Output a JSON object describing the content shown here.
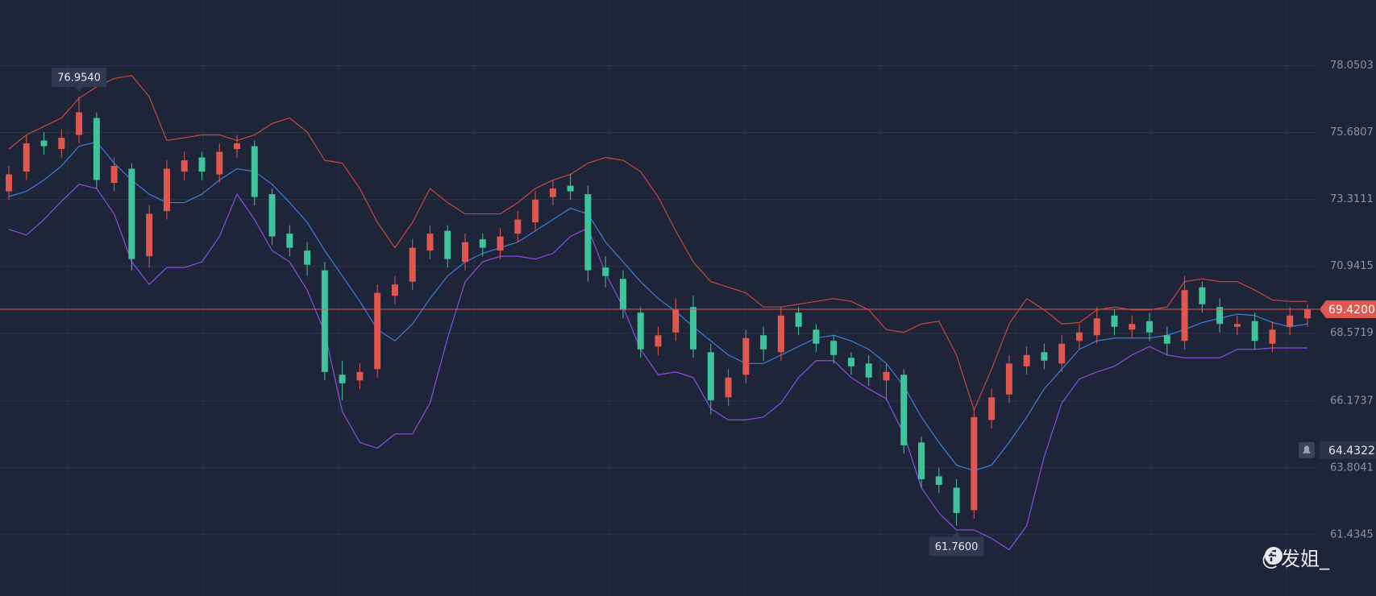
{
  "chart_data": {
    "type": "candlestick",
    "ylim": [
      59.26,
      80.38
    ],
    "yticks": [
      78.0503,
      75.6807,
      73.3111,
      70.9415,
      68.5719,
      66.1737,
      63.8041,
      61.4345
    ],
    "grid": true,
    "up_color": "#e0574f",
    "down_color": "#3dc49a",
    "open": [
      73.6,
      74.3,
      75.4,
      75.1,
      75.6,
      76.2,
      73.9,
      74.4,
      71.3,
      72.9,
      74.3,
      74.8,
      74.2,
      75.1,
      75.2,
      73.5,
      72.1,
      71.5,
      70.8,
      67.1,
      66.9,
      67.3,
      69.9,
      70.4,
      71.5,
      72.2,
      71.1,
      71.9,
      71.5,
      72.1,
      72.5,
      73.4,
      73.8,
      73.5,
      70.9,
      70.5,
      69.3,
      68.1,
      68.6,
      69.5,
      67.9,
      66.3,
      67.1,
      68.5,
      67.9,
      69.3,
      68.7,
      68.3,
      67.7,
      67.5,
      66.9,
      67.1,
      64.7,
      63.5,
      63.1,
      62.3,
      65.5,
      66.4,
      67.4,
      67.9,
      67.5,
      68.3,
      68.5,
      69.2,
      68.7,
      69.0,
      68.5,
      68.3,
      70.2,
      69.5,
      68.8,
      69.0,
      68.2,
      68.8,
      69.1
    ],
    "high": [
      74.5,
      75.6,
      75.7,
      75.8,
      76.954,
      76.4,
      74.8,
      74.6,
      73.1,
      74.7,
      75.0,
      75.0,
      75.3,
      75.6,
      75.4,
      73.7,
      72.4,
      71.8,
      71.1,
      67.6,
      67.5,
      70.3,
      70.6,
      71.9,
      72.4,
      72.4,
      72.1,
      72.1,
      72.3,
      72.9,
      73.6,
      74.0,
      74.2,
      73.8,
      71.3,
      70.8,
      69.5,
      68.8,
      69.8,
      69.9,
      68.2,
      67.3,
      68.7,
      68.8,
      69.5,
      69.5,
      68.9,
      68.5,
      67.9,
      67.8,
      67.5,
      67.3,
      64.9,
      63.8,
      63.4,
      65.9,
      66.6,
      67.8,
      68.1,
      68.2,
      68.5,
      68.9,
      69.5,
      69.4,
      69.2,
      69.3,
      68.8,
      70.6,
      70.4,
      69.8,
      69.2,
      69.3,
      69.0,
      69.5,
      69.6
    ],
    "low": [
      73.3,
      74.0,
      74.9,
      74.8,
      75.3,
      73.7,
      73.6,
      70.8,
      70.9,
      72.6,
      74.0,
      74.0,
      73.9,
      74.8,
      73.1,
      71.7,
      71.3,
      70.6,
      66.9,
      66.2,
      66.6,
      67.0,
      69.6,
      70.1,
      71.2,
      70.9,
      70.8,
      71.3,
      71.2,
      71.8,
      72.2,
      73.1,
      73.3,
      70.4,
      70.2,
      69.1,
      67.7,
      67.8,
      68.3,
      67.7,
      65.7,
      66.0,
      66.8,
      67.6,
      67.6,
      68.5,
      67.9,
      67.5,
      67.1,
      66.7,
      66.2,
      64.3,
      63.1,
      62.9,
      61.76,
      62.0,
      65.2,
      66.1,
      67.1,
      67.3,
      67.2,
      68.0,
      68.2,
      68.5,
      68.4,
      68.3,
      67.8,
      68.0,
      69.3,
      68.6,
      68.5,
      68.0,
      67.9,
      68.5,
      68.8
    ],
    "close": [
      74.2,
      75.3,
      75.2,
      75.5,
      76.4,
      74.0,
      74.5,
      71.2,
      72.8,
      74.4,
      74.7,
      74.3,
      75.0,
      75.3,
      73.4,
      72.0,
      71.6,
      71.0,
      67.2,
      66.8,
      67.2,
      70.0,
      70.3,
      71.6,
      72.1,
      71.2,
      71.8,
      71.6,
      72.0,
      72.6,
      73.3,
      73.7,
      73.6,
      70.8,
      70.6,
      69.4,
      68.0,
      68.5,
      69.4,
      68.0,
      66.2,
      67.0,
      68.4,
      68.0,
      69.2,
      68.8,
      68.2,
      67.8,
      67.4,
      67.0,
      67.2,
      64.6,
      63.4,
      63.2,
      62.2,
      65.6,
      66.3,
      67.5,
      67.8,
      67.6,
      68.2,
      68.6,
      69.1,
      68.8,
      68.9,
      68.6,
      68.2,
      70.1,
      69.6,
      68.9,
      68.9,
      68.3,
      68.7,
      69.2,
      69.42
    ],
    "bands": [
      {
        "color": "#c9483f",
        "values": [
          75.1,
          75.6,
          75.9,
          76.2,
          76.9,
          77.3,
          77.6,
          77.7,
          76.95,
          75.4,
          75.5,
          75.6,
          75.6,
          75.4,
          75.6,
          76.0,
          76.2,
          75.7,
          74.7,
          74.6,
          73.7,
          72.5,
          71.6,
          72.5,
          73.7,
          73.2,
          72.8,
          72.8,
          72.8,
          73.2,
          73.7,
          74.0,
          74.2,
          74.6,
          74.8,
          74.7,
          74.3,
          73.4,
          72.2,
          71.1,
          70.4,
          70.2,
          70.0,
          69.5,
          69.5,
          69.6,
          69.7,
          69.8,
          69.7,
          69.4,
          68.7,
          68.6,
          68.9,
          69.0,
          67.8,
          65.85,
          67.3,
          68.9,
          69.8,
          69.4,
          68.9,
          68.95,
          69.4,
          69.5,
          69.4,
          69.4,
          69.5,
          70.4,
          70.5,
          70.4,
          70.4,
          70.1,
          69.75,
          69.7,
          69.7
        ]
      },
      {
        "color": "#3e7fd8",
        "values": [
          73.42,
          73.6,
          74.0,
          74.5,
          75.2,
          75.35,
          74.6,
          74.0,
          73.5,
          73.2,
          73.2,
          73.5,
          74.0,
          74.4,
          74.3,
          73.85,
          73.2,
          72.5,
          71.5,
          70.6,
          69.7,
          68.7,
          68.3,
          68.9,
          69.8,
          70.6,
          71.1,
          71.4,
          71.6,
          71.8,
          72.2,
          72.6,
          73.0,
          72.8,
          71.8,
          71.1,
          70.4,
          69.8,
          69.35,
          68.8,
          68.3,
          67.8,
          67.5,
          67.5,
          67.8,
          68.1,
          68.4,
          68.5,
          68.3,
          68.0,
          67.5,
          66.7,
          65.6,
          64.7,
          63.9,
          63.7,
          63.9,
          64.7,
          65.6,
          66.6,
          67.3,
          68.0,
          68.3,
          68.4,
          68.4,
          68.4,
          68.5,
          68.7,
          68.95,
          69.1,
          69.25,
          69.2,
          68.95,
          68.8,
          68.9
        ]
      },
      {
        "color": "#8b4fe0",
        "values": [
          72.25,
          72.05,
          72.6,
          73.25,
          73.85,
          73.7,
          72.8,
          71.1,
          70.3,
          70.9,
          70.9,
          71.1,
          72.0,
          73.5,
          72.6,
          71.5,
          71.1,
          70.1,
          68.6,
          65.8,
          64.7,
          64.5,
          65.0,
          65.0,
          66.1,
          68.4,
          70.4,
          71.1,
          71.3,
          71.3,
          71.2,
          71.4,
          72.0,
          72.3,
          70.7,
          69.5,
          68.0,
          67.1,
          67.2,
          67.0,
          65.9,
          65.5,
          65.5,
          65.6,
          66.1,
          67.0,
          67.6,
          67.6,
          67.0,
          66.6,
          66.25,
          65.0,
          63.1,
          62.2,
          61.6,
          61.6,
          61.3,
          60.9,
          61.75,
          64.2,
          66.1,
          66.95,
          67.2,
          67.4,
          67.8,
          68.1,
          67.8,
          67.7,
          67.7,
          67.7,
          68.0,
          68.0,
          68.05,
          68.05,
          68.05
        ]
      }
    ],
    "last_price": {
      "value": 69.42,
      "label": "69.4200",
      "color": "#e0574f"
    },
    "alert": {
      "value": 64.4322,
      "label": "64.4322"
    },
    "high_label": "76.9540",
    "low_label": "61.7600"
  },
  "watermark": "@发姐_"
}
